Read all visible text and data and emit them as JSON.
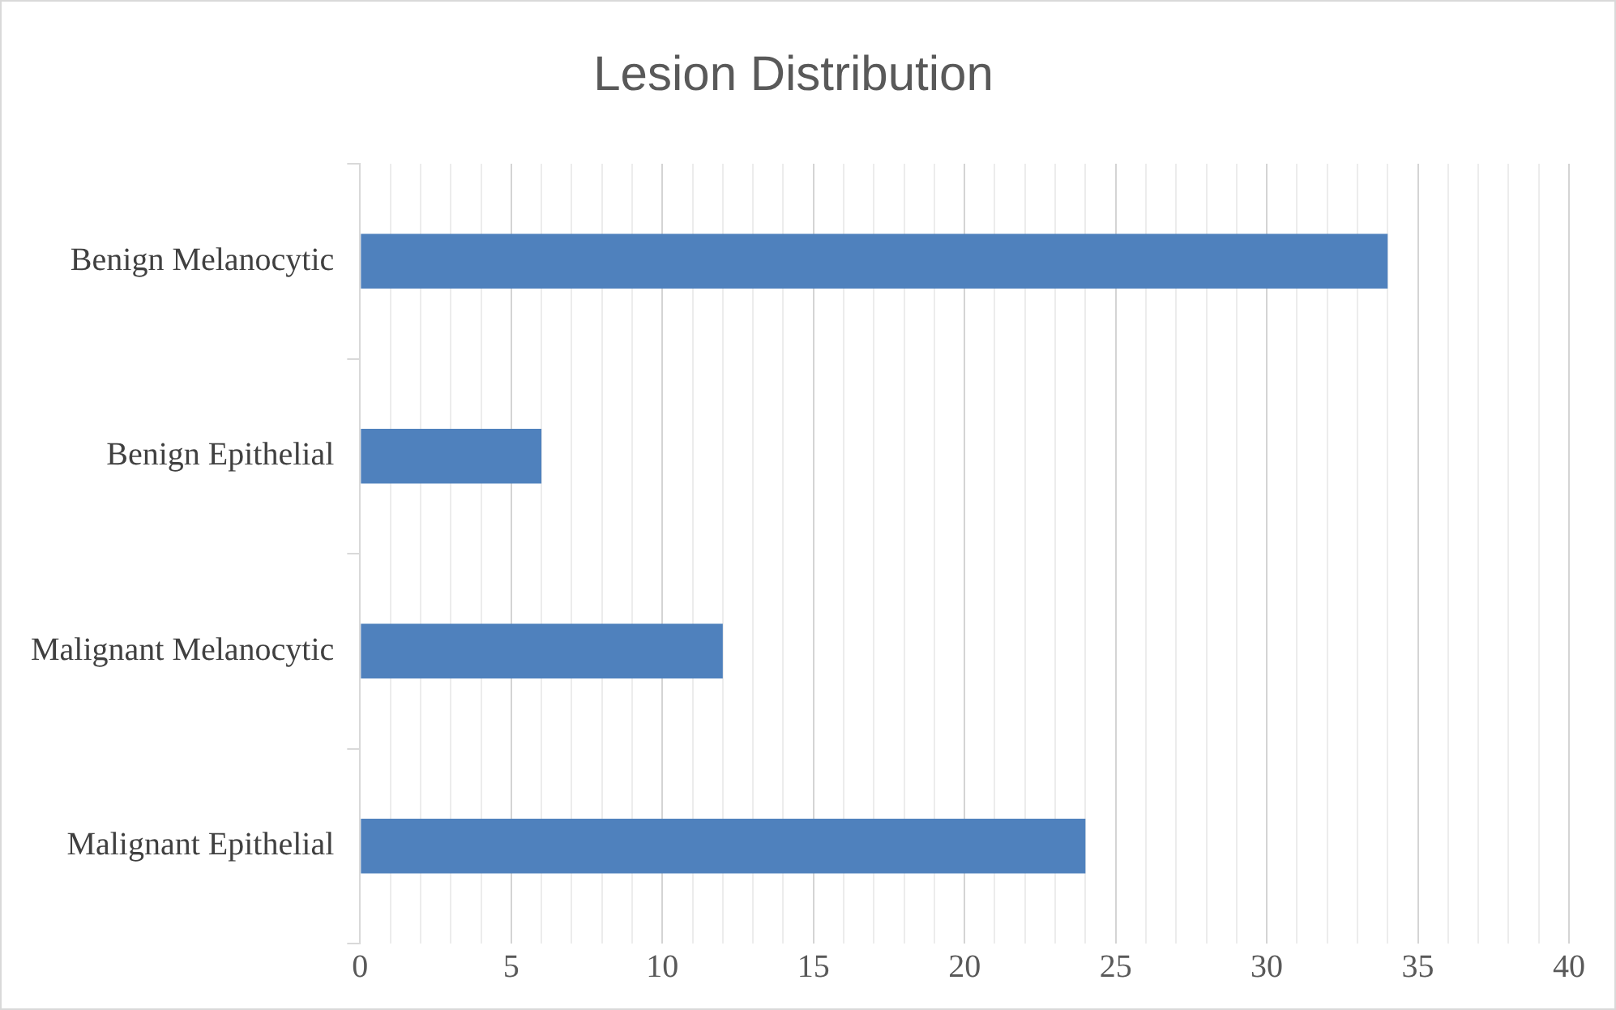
{
  "chart_data": {
    "type": "bar",
    "orientation": "horizontal",
    "title": "Lesion Distribution",
    "categories": [
      "Benign Melanocytic",
      "Benign Epithelial",
      "Malignant Melanocytic",
      "Malignant Epithelial"
    ],
    "values": [
      34,
      6,
      12,
      24
    ],
    "color": "#4f81bd",
    "xlim": [
      0,
      40
    ],
    "xticks": [
      0,
      {
        "value": 1,
        "label": null
      },
      {
        "value": 2,
        "label": null
      },
      {
        "value": 3,
        "label": null
      },
      {
        "value": 4,
        "label": null
      },
      5,
      {
        "value": 6,
        "label": null
      },
      {
        "value": 7,
        "label": null
      },
      {
        "value": 8,
        "label": null
      },
      {
        "value": 9,
        "label": null
      },
      10,
      {
        "value": 11,
        "label": null
      },
      {
        "value": 12,
        "label": null
      },
      {
        "value": 13,
        "label": null
      },
      {
        "value": 14,
        "label": null
      },
      15,
      {
        "value": 16,
        "label": null
      },
      {
        "value": 17,
        "label": null
      },
      {
        "value": 18,
        "label": null
      },
      {
        "value": 19,
        "label": null
      },
      20,
      {
        "value": 21,
        "label": null
      },
      {
        "value": 22,
        "label": null
      },
      {
        "value": 23,
        "label": null
      },
      {
        "value": 24,
        "label": null
      },
      25,
      {
        "value": 26,
        "label": null
      },
      {
        "value": 27,
        "label": null
      },
      {
        "value": 28,
        "label": null
      },
      {
        "value": 29,
        "label": null
      },
      30,
      {
        "value": 31,
        "label": null
      },
      {
        "value": 32,
        "label": null
      },
      {
        "value": 33,
        "label": null
      },
      {
        "value": 34,
        "label": null
      },
      35,
      {
        "value": 36,
        "label": null
      },
      {
        "value": 37,
        "label": null
      },
      {
        "value": 38,
        "label": null
      },
      {
        "value": 39,
        "label": null
      },
      40
    ],
    "grid": "x",
    "legend": false
  }
}
